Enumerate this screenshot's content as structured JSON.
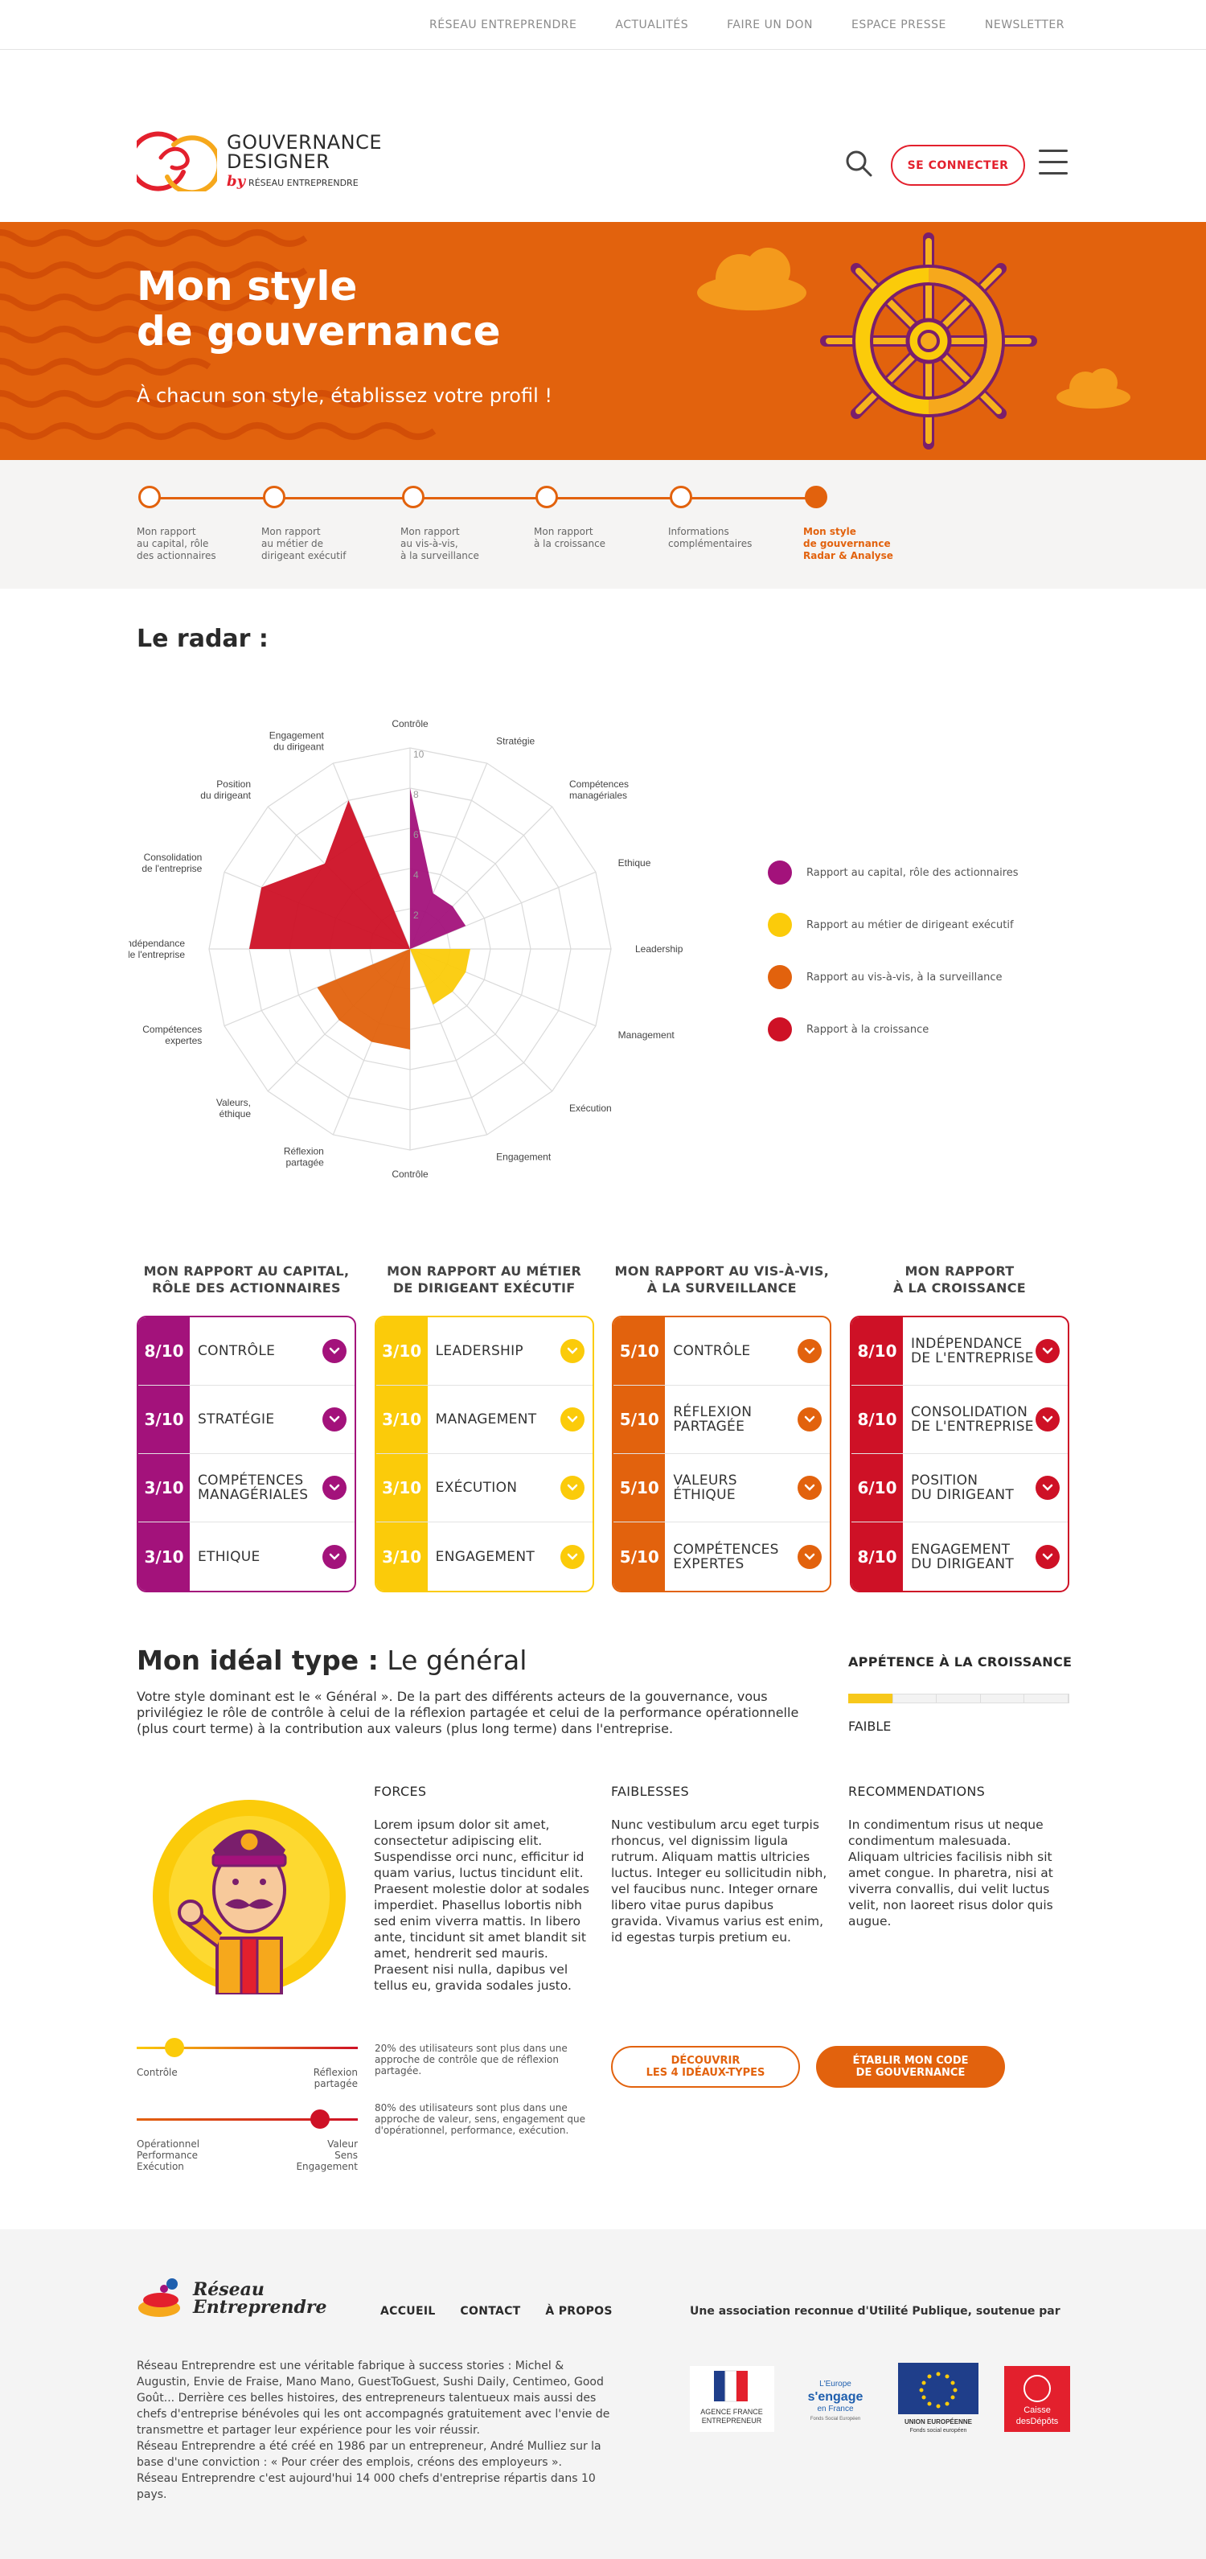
{
  "topnav": [
    "RÉSEAU ENTREPRENDRE",
    "ACTUALITÉS",
    "FAIRE UN DON",
    "ESPACE PRESSE",
    "NEWSLETTER"
  ],
  "logo": {
    "line1": "GOUVERNANCE",
    "line2": "DESIGNER",
    "by": "by",
    "org": "RÉSEAU ENTREPRENDRE"
  },
  "header": {
    "connect": "SE CONNECTER"
  },
  "hero": {
    "title_l1": "Mon style",
    "title_l2": "de gouvernance",
    "subtitle": "À chacun son style, établissez votre profil !"
  },
  "steps": [
    {
      "label": "Mon rapport\nau capital, rôle\ndes actionnaires",
      "active": false
    },
    {
      "label": "Mon rapport\nau métier de\ndirigeant exécutif",
      "active": false
    },
    {
      "label": "Mon rapport\nau vis-à-vis,\nà la surveillance",
      "active": false
    },
    {
      "label": "Mon rapport\nà la croissance",
      "active": false
    },
    {
      "label": "Informations\ncomplémentaires",
      "active": false
    },
    {
      "label": "Mon style\nde gouvernance\nRadar & Analyse",
      "active": true
    }
  ],
  "radar": {
    "title": "Le radar :",
    "axes": [
      "Contrôle",
      "Stratégie",
      "Compétences\nmanagériales",
      "Ethique",
      "Leadership",
      "Management",
      "Exécution",
      "Engagement",
      "Contrôle",
      "Réflexion\npartagée",
      "Valeurs,\néthique",
      "Compétences\nexpertes",
      "Indépendance\nde l'entreprise",
      "Consolidation\nde l'entreprise",
      "Position\ndu dirigeant",
      "Engagement\ndu dirigeant"
    ],
    "ticks": [
      "2",
      "4",
      "6",
      "8",
      "10"
    ],
    "series": [
      {
        "name": "Rapport au capital, rôle des actionnaires",
        "color": "#a3127b"
      },
      {
        "name": "Rapport au métier de dirigeant exécutif",
        "color": "#fbcb0a"
      },
      {
        "name": "Rapport au vis-à-vis, à la surveillance",
        "color": "#e2620d"
      },
      {
        "name": "Rapport à la croissance",
        "color": "#ce1126"
      }
    ]
  },
  "chart_data": {
    "type": "radar",
    "axes": [
      "Contrôle",
      "Stratégie",
      "Compétences managériales",
      "Ethique",
      "Leadership",
      "Management",
      "Exécution",
      "Engagement",
      "Contrôle",
      "Réflexion partagée",
      "Valeurs, éthique",
      "Compétences expertes",
      "Indépendance de l'entreprise",
      "Consolidation de l'entreprise",
      "Position du dirigeant",
      "Engagement du dirigeant"
    ],
    "range": [
      0,
      10
    ],
    "series": [
      {
        "name": "Rapport au capital, rôle des actionnaires",
        "values": [
          8,
          3,
          3,
          3,
          null,
          null,
          null,
          null,
          null,
          null,
          null,
          null,
          null,
          null,
          null,
          null
        ]
      },
      {
        "name": "Rapport au métier de dirigeant exécutif",
        "values": [
          null,
          null,
          null,
          null,
          3,
          3,
          3,
          3,
          null,
          null,
          null,
          null,
          null,
          null,
          null,
          null
        ]
      },
      {
        "name": "Rapport au vis-à-vis, à la surveillance",
        "values": [
          null,
          null,
          null,
          null,
          null,
          null,
          null,
          null,
          5,
          5,
          5,
          5,
          null,
          null,
          null,
          null
        ]
      },
      {
        "name": "Rapport à la croissance",
        "values": [
          null,
          null,
          null,
          null,
          null,
          null,
          null,
          null,
          null,
          null,
          null,
          null,
          8,
          8,
          6,
          8
        ]
      }
    ]
  },
  "cards": [
    {
      "title": "MON RAPPORT AU CAPITAL,\nRÔLE DES ACTIONNAIRES",
      "color": "#a3127b",
      "rows": [
        {
          "score": "8/10",
          "label": "CONTRÔLE"
        },
        {
          "score": "3/10",
          "label": "STRATÉGIE"
        },
        {
          "score": "3/10",
          "label": "COMPÉTENCES\nMANAGÉRIALES"
        },
        {
          "score": "3/10",
          "label": "ETHIQUE"
        }
      ]
    },
    {
      "title": "MON RAPPORT AU MÉTIER\nDE DIRIGEANT EXÉCUTIF",
      "color": "#fbcb0a",
      "rows": [
        {
          "score": "3/10",
          "label": "LEADERSHIP"
        },
        {
          "score": "3/10",
          "label": "MANAGEMENT"
        },
        {
          "score": "3/10",
          "label": "EXÉCUTION"
        },
        {
          "score": "3/10",
          "label": "ENGAGEMENT"
        }
      ]
    },
    {
      "title": "MON RAPPORT AU VIS-À-VIS,\nÀ LA SURVEILLANCE",
      "color": "#e2620d",
      "rows": [
        {
          "score": "5/10",
          "label": "CONTRÔLE"
        },
        {
          "score": "5/10",
          "label": "RÉFLEXION\nPARTAGÉE"
        },
        {
          "score": "5/10",
          "label": "VALEURS\nÉTHIQUE"
        },
        {
          "score": "5/10",
          "label": "COMPÉTENCES\nEXPERTES"
        }
      ]
    },
    {
      "title": "MON RAPPORT\nÀ LA CROISSANCE",
      "color": "#ce1126",
      "rows": [
        {
          "score": "8/10",
          "label": "INDÉPENDANCE\nDE L'ENTREPRISE"
        },
        {
          "score": "8/10",
          "label": "CONSOLIDATION\nDE L'ENTREPRISE"
        },
        {
          "score": "6/10",
          "label": "POSITION\nDU DIRIGEANT"
        },
        {
          "score": "8/10",
          "label": "ENGAGEMENT\nDU DIRIGEANT"
        }
      ]
    }
  ],
  "ideal": {
    "title_bold": "Mon idéal type :",
    "title_rest": " Le général",
    "description": "Votre style dominant est le « Général ». De la part des différents acteurs de la gouvernance, vous privilégiez le rôle de contrôle à celui de la réflexion partagée et celui de la performance opérationnelle (plus court terme) à la contribution aux valeurs (plus long terme) dans l'entreprise.",
    "appetence_title": "APPÉTENCE À LA CROISSANCE",
    "appetence_level": "FAIBLE",
    "appetence_value": 0.2,
    "forces_title": "FORCES",
    "forces": "Lorem ipsum dolor sit amet, consectetur adipiscing elit. Suspendisse orci nunc, efficitur id quam varius, luctus tincidunt elit. Praesent molestie dolor at sodales imperdiet. Phasellus lobortis nibh sed enim viverra mattis. In libero ante, tincidunt sit amet blandit sit amet, hendrerit sed mauris. Praesent nisi nulla, dapibus vel tellus eu, gravida sodales justo.",
    "faiblesses_title": "FAIBLESSES",
    "faiblesses": "Nunc vestibulum arcu eget turpis rhoncus, vel dignissim ligula rutrum. Aliquam mattis ultricies luctus. Integer eu sollicitudin nibh, vel faucibus nunc. Integer ornare libero vitae purus dapibus gravida. Vivamus varius est enim, id egestas turpis pretium eu.",
    "reco_title": "RECOMMENDATIONS",
    "reco": "In condimentum risus ut neque condimentum malesuada. Aliquam ultricies facilisis nibh sit amet congue. In pharetra, nisi at viverra convallis, dui velit luctus velit, non laoreet risus dolor quis augue.",
    "slider1": {
      "left": "Contrôle",
      "right": "Réflexion\npartagée",
      "pct_text": "20% des utilisateurs sont plus dans une approche de contrôle que de réflexion partagée.",
      "value": 0.17
    },
    "slider2": {
      "left": "Opérationnel\nPerformance\nExécution",
      "right": "Valeur\nSens\nEngagement",
      "pct_text": "80% des utilisateurs sont plus dans une approche de valeur, sens, engagement que d'opérationnel, performance, exécution.",
      "value": 0.83
    },
    "btn_discover": "DÉCOUVRIR\nLES 4 IDÉAUX-TYPES",
    "btn_code": "ÉTABLIR MON CODE\nDE GOUVERNANCE"
  },
  "footer": {
    "logo": "Réseau\nEntreprendre",
    "nav": [
      "ACCUEIL",
      "CONTACT",
      "À PROPOS"
    ],
    "asso": "Une association reconnue d'Utilité Publique, soutenue par",
    "desc": "Réseau Entreprendre est une véritable fabrique à success stories : Michel & Augustin, Envie de Fraise, Mano Mano, GuestToGuest, Sushi Daily, Centimeo, Good Goût... Derrière ces belles histoires, des entrepreneurs talentueux mais aussi des chefs d'entreprise bénévoles qui les ont accompagnés gratuitement avec l'envie de transmettre et partager leur expérience pour les voir réussir.\nRéseau Entreprendre a été créé en 1986 par un entrepreneur, André Mulliez sur la base d'une conviction : « Pour créer des emplois, créons des employeurs ».\nRéseau Entreprendre c'est aujourd'hui 14 000 chefs d'entreprise répartis dans 10 pays.",
    "partners": [
      {
        "name": "AGENCE FRANCE\nENTREPRENEUR"
      },
      {
        "name": "L'Europe s'engage en France",
        "sub": "Fonds Social Européen"
      },
      {
        "name": "UNION EUROPÉENNE\nFonds social européen"
      },
      {
        "name": "Caisse\ndesDépôts"
      }
    ]
  }
}
